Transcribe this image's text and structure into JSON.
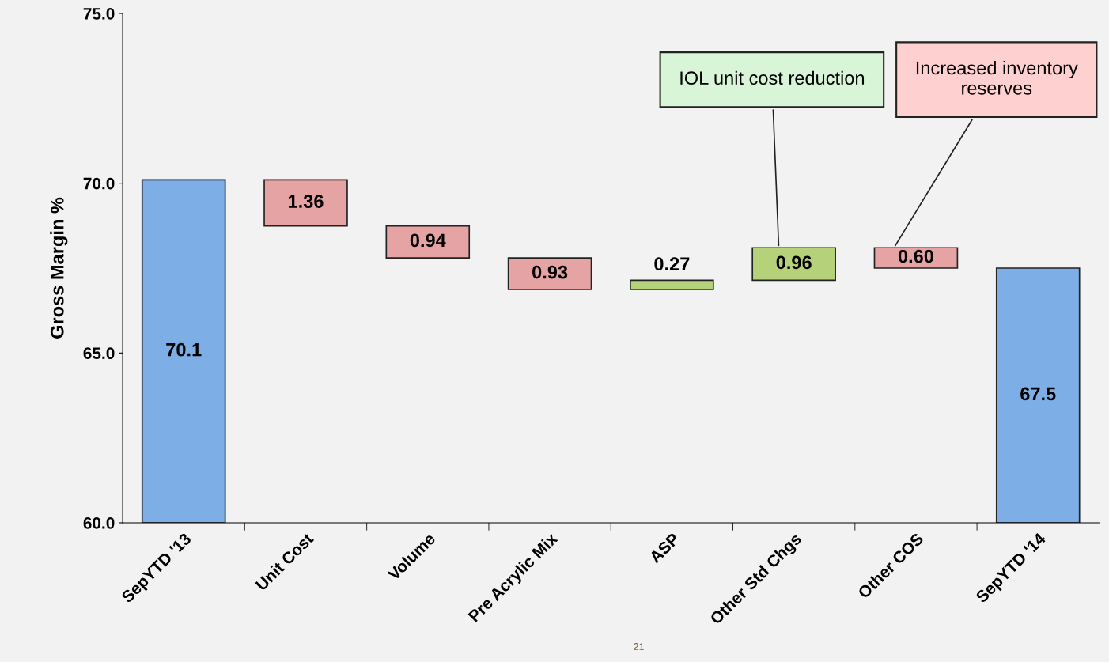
{
  "chart_data": {
    "type": "bar",
    "ylabel": "Gross Margin %",
    "categories": [
      "SepYTD '13",
      "Unit Cost",
      "Volume",
      "Pre Acrylic Mix",
      "ASP",
      "Other Std Chgs",
      "Other COS",
      "SepYTD '14"
    ],
    "values": [
      10.1,
      1.36,
      0.94,
      0.93,
      0.27,
      0.96,
      0.6,
      7.5
    ],
    "base": [
      60,
      68.74,
      67.8,
      66.87,
      66.87,
      67.14,
      67.5,
      60
    ],
    "colors": [
      "#7eaee6",
      "#e6a3a3",
      "#e6a3a3",
      "#e6a3a3",
      "#b5d27a",
      "#b5d27a",
      "#e6a3a3",
      "#7eaee6"
    ],
    "value_labels": [
      "70.1",
      "1.36",
      "0.94",
      "0.93",
      "0.27",
      "0.96",
      "0.60",
      "67.5"
    ],
    "ylim": [
      60,
      75
    ],
    "yticks": [
      {
        "value": 60,
        "label": "60.0"
      },
      {
        "value": 65,
        "label": "65.0"
      },
      {
        "value": 70,
        "label": "70.0"
      },
      {
        "value": 75,
        "label": "75.0"
      }
    ],
    "grid": false,
    "annotations": [
      "IOL unit cost reduction",
      "Increased inventory reserves",
      "21"
    ]
  }
}
